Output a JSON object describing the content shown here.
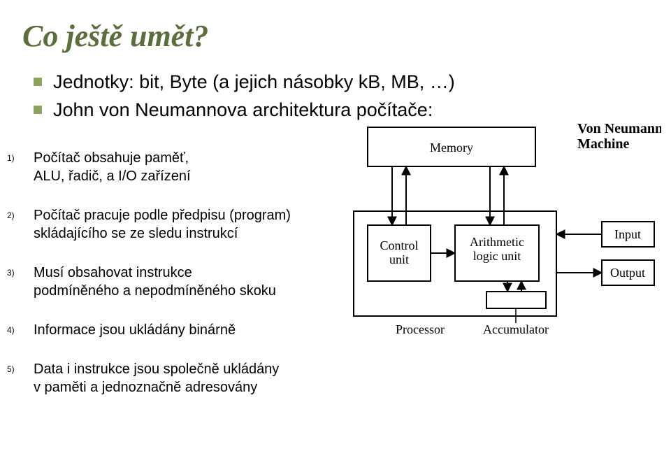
{
  "title": "Co ještě umět?",
  "bullets": [
    "Jednotky: bit, Byte (a jejich násobky kB, MB, …)",
    "John von Neumannova architektura počítače:"
  ],
  "numbered": [
    {
      "num": "1)",
      "txt": "Počítač obsahuje paměť,\nALU, řadič, a I/O zařízení"
    },
    {
      "num": "2)",
      "txt": "Počítač pracuje podle předpisu (program)\nskládajícího se ze sledu instrukcí"
    },
    {
      "num": "3)",
      "txt": "Musí obsahovat instrukce\npodmíněného a nepodmíněného skoku"
    },
    {
      "num": "4)",
      "txt": "Informace jsou ukládány binárně"
    },
    {
      "num": "5)",
      "txt": "Data i instrukce jsou společně ukládány\nv paměti a jednoznačně adresovány"
    }
  ],
  "diagram": {
    "vn_title1": "Von Neumann",
    "vn_title2": "Machine",
    "memory": "Memory",
    "control_unit1": "Control",
    "control_unit2": "unit",
    "alu1": "Arithmetic",
    "alu2": "logic unit",
    "input": "Input",
    "output": "Output",
    "processor": "Processor",
    "accumulator": "Accumulator",
    "box_stroke": "#000000",
    "box_stroke_width": 2,
    "bg": "#ffffff"
  },
  "colors": {
    "title": "#5a6f3b",
    "bullet_square": "#8da35d",
    "text": "#000000",
    "background": "#ffffff"
  },
  "fonts": {
    "title_family": "Garamond, Times New Roman, serif",
    "title_size_pt": 33,
    "title_style": "italic",
    "bullet_size_pt": 20,
    "numbered_size_pt": 15,
    "diagram_label_family": "Times New Roman, serif",
    "diagram_label_size_pt": 14,
    "vn_title_size_pt": 15,
    "vn_title_weight": "bold"
  }
}
